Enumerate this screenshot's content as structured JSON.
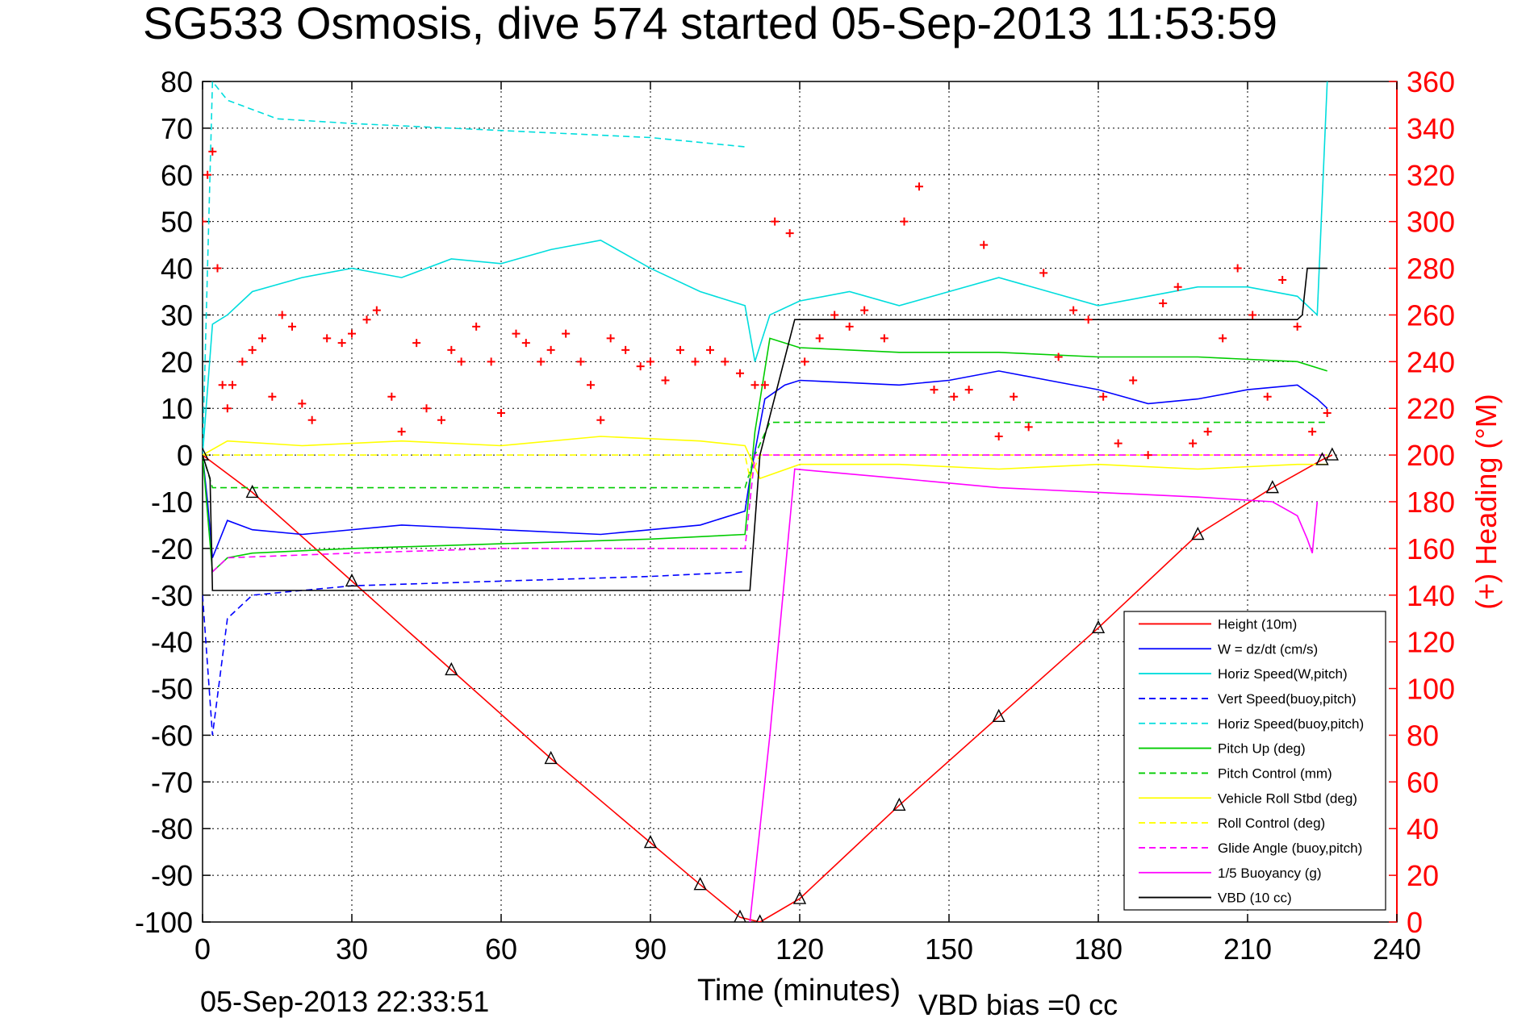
{
  "chart_data": {
    "type": "line",
    "title": "SG533 Osmosis, dive 574 started 05-Sep-2013 11:53:59",
    "xlabel": "Time (minutes)",
    "ylabel_right": "(+) Heading (°M)",
    "footer_left": "05-Sep-2013 22:33:51",
    "footer_right": "VBD bias =0 cc",
    "xlim": [
      0,
      240
    ],
    "ylim": [
      -100,
      80
    ],
    "ylim_right": [
      0,
      360
    ],
    "x_ticks": [
      "0",
      "30",
      "60",
      "90",
      "120",
      "150",
      "180",
      "210",
      "240"
    ],
    "y_ticks": [
      "80",
      "70",
      "60",
      "50",
      "40",
      "30",
      "20",
      "10",
      "0",
      "-10",
      "-20",
      "-30",
      "-40",
      "-50",
      "-60",
      "-70",
      "-80",
      "-90",
      "-100"
    ],
    "y_ticks_right": [
      "360",
      "340",
      "320",
      "300",
      "280",
      "260",
      "240",
      "220",
      "200",
      "180",
      "160",
      "140",
      "120",
      "100",
      "80",
      "60",
      "40",
      "20",
      "0"
    ],
    "grid": true,
    "legend_position": "bottom-right",
    "series": [
      {
        "name": "Height (10m)",
        "color": "#ff0000",
        "style": "solid",
        "x": [
          0,
          10,
          30,
          50,
          70,
          90,
          100,
          108,
          112,
          120,
          140,
          160,
          180,
          200,
          215,
          225,
          227
        ],
        "y": [
          0,
          -8,
          -27,
          -46,
          -65,
          -83,
          -92,
          -99,
          -100,
          -95,
          -75,
          -56,
          -37,
          -17,
          -7,
          -1,
          0
        ]
      },
      {
        "name": "W = dz/dt (cm/s)",
        "color": "#0000ff",
        "style": "solid",
        "x": [
          0,
          1,
          2,
          5,
          10,
          20,
          40,
          60,
          80,
          100,
          109,
          110,
          113,
          117,
          120,
          140,
          150,
          160,
          170,
          180,
          190,
          200,
          210,
          220,
          224,
          226
        ],
        "y": [
          0,
          -10,
          -22,
          -14,
          -16,
          -17,
          -15,
          -16,
          -17,
          -15,
          -12,
          -5,
          12,
          15,
          16,
          15,
          16,
          18,
          16,
          14,
          11,
          12,
          14,
          15,
          12,
          10
        ]
      },
      {
        "name": "Horiz Speed(W,pitch)",
        "color": "#00dddd",
        "style": "solid",
        "x": [
          0,
          2,
          5,
          10,
          20,
          30,
          40,
          50,
          60,
          70,
          80,
          90,
          100,
          109,
          111,
          114,
          120,
          130,
          140,
          150,
          160,
          170,
          180,
          190,
          200,
          210,
          220,
          224,
          226
        ],
        "y": [
          0,
          28,
          30,
          35,
          38,
          40,
          38,
          42,
          41,
          44,
          46,
          40,
          35,
          32,
          20,
          30,
          33,
          35,
          32,
          35,
          38,
          35,
          32,
          34,
          36,
          36,
          34,
          30,
          80
        ]
      },
      {
        "name": "Vert Speed(buoy,pitch)",
        "color": "#0000ff",
        "style": "dashed",
        "x": [
          0,
          2,
          5,
          10,
          30,
          60,
          90,
          109
        ],
        "y": [
          -30,
          -60,
          -35,
          -30,
          -28,
          -27,
          -26,
          -25
        ]
      },
      {
        "name": "Horiz Speed(buoy,pitch)",
        "color": "#00dddd",
        "style": "dashed",
        "x": [
          0,
          2,
          5,
          15,
          30,
          50,
          70,
          90,
          109
        ],
        "y": [
          0,
          80,
          76,
          72,
          71,
          70,
          69,
          68,
          66
        ]
      },
      {
        "name": "Pitch Up (deg)",
        "color": "#00cc00",
        "style": "solid",
        "x": [
          0,
          2,
          5,
          10,
          30,
          60,
          90,
          109,
          111,
          114,
          120,
          140,
          160,
          180,
          200,
          220,
          226
        ],
        "y": [
          0,
          -25,
          -22,
          -21,
          -20,
          -19,
          -18,
          -17,
          5,
          25,
          23,
          22,
          22,
          21,
          21,
          20,
          18
        ]
      },
      {
        "name": "Pitch Control (mm)",
        "color": "#00cc00",
        "style": "dashed",
        "x": [
          0,
          2,
          10,
          109,
          111,
          114,
          226
        ],
        "y": [
          0,
          -7,
          -7,
          -7,
          0,
          7,
          7
        ]
      },
      {
        "name": "Vehicle Roll Stbd (deg)",
        "color": "#ffff00",
        "style": "solid",
        "x": [
          0,
          5,
          20,
          40,
          60,
          80,
          100,
          109,
          112,
          120,
          140,
          160,
          180,
          200,
          220,
          226
        ],
        "y": [
          0,
          3,
          2,
          3,
          2,
          4,
          3,
          2,
          -5,
          -2,
          -2,
          -3,
          -2,
          -3,
          -2,
          -2
        ]
      },
      {
        "name": "Roll Control (deg)",
        "color": "#ffff00",
        "style": "dashed",
        "x": [
          0,
          5,
          109,
          110,
          112,
          226
        ],
        "y": [
          0,
          0,
          0,
          -5,
          0,
          0
        ]
      },
      {
        "name": "Glide Angle (buoy,pitch)",
        "color": "#ff00ff",
        "style": "dashed",
        "x": [
          2,
          5,
          30,
          60,
          90,
          109,
          111,
          226
        ],
        "y": [
          -25,
          -22,
          -21,
          -20,
          -20,
          -20,
          0,
          0
        ]
      },
      {
        "name": "1/5 Buoyancy (g)",
        "color": "#ff00ff",
        "style": "solid",
        "x": [
          110,
          114,
          119,
          140,
          160,
          180,
          200,
          215,
          220,
          222,
          223,
          224
        ],
        "y": [
          -100,
          -60,
          -3,
          -5,
          -7,
          -8,
          -9,
          -10,
          -13,
          -18,
          -21,
          -10
        ]
      },
      {
        "name": "VBD (10 cc)",
        "color": "#000000",
        "style": "solid",
        "x": [
          0,
          1.5,
          2,
          110,
          112,
          119,
          120,
          220,
          221,
          222,
          226
        ],
        "y": [
          0,
          -5,
          -29,
          -29,
          0,
          29,
          29,
          29,
          30,
          40,
          40
        ]
      }
    ],
    "heading_points": {
      "name": "(+) Heading (°M)",
      "color": "#ff0000",
      "marker": "+",
      "x": [
        0,
        1,
        2,
        3,
        4,
        5,
        6,
        8,
        10,
        12,
        14,
        16,
        18,
        20,
        22,
        25,
        28,
        30,
        33,
        35,
        38,
        40,
        43,
        45,
        48,
        50,
        52,
        55,
        58,
        60,
        63,
        65,
        68,
        70,
        73,
        76,
        78,
        80,
        82,
        85,
        88,
        90,
        93,
        96,
        99,
        102,
        105,
        108,
        111,
        113,
        115,
        118,
        121,
        124,
        127,
        130,
        133,
        137,
        141,
        144,
        147,
        151,
        154,
        157,
        160,
        163,
        166,
        169,
        172,
        175,
        178,
        181,
        184,
        187,
        190,
        193,
        196,
        199,
        202,
        205,
        208,
        211,
        214,
        217,
        220,
        223,
        226
      ],
      "y": [
        300,
        320,
        330,
        280,
        230,
        220,
        230,
        240,
        245,
        250,
        225,
        260,
        255,
        222,
        215,
        250,
        248,
        252,
        258,
        262,
        225,
        210,
        248,
        220,
        215,
        245,
        240,
        255,
        240,
        218,
        252,
        248,
        240,
        245,
        252,
        240,
        230,
        215,
        250,
        245,
        238,
        240,
        232,
        245,
        240,
        245,
        240,
        235,
        230,
        230,
        300,
        295,
        240,
        250,
        260,
        255,
        262,
        250,
        300,
        315,
        228,
        225,
        228,
        290,
        208,
        225,
        212,
        278,
        242,
        262,
        258,
        225,
        205,
        232,
        200,
        265,
        272,
        205,
        210,
        250,
        280,
        260,
        225,
        275,
        255,
        210,
        218
      ]
    }
  }
}
